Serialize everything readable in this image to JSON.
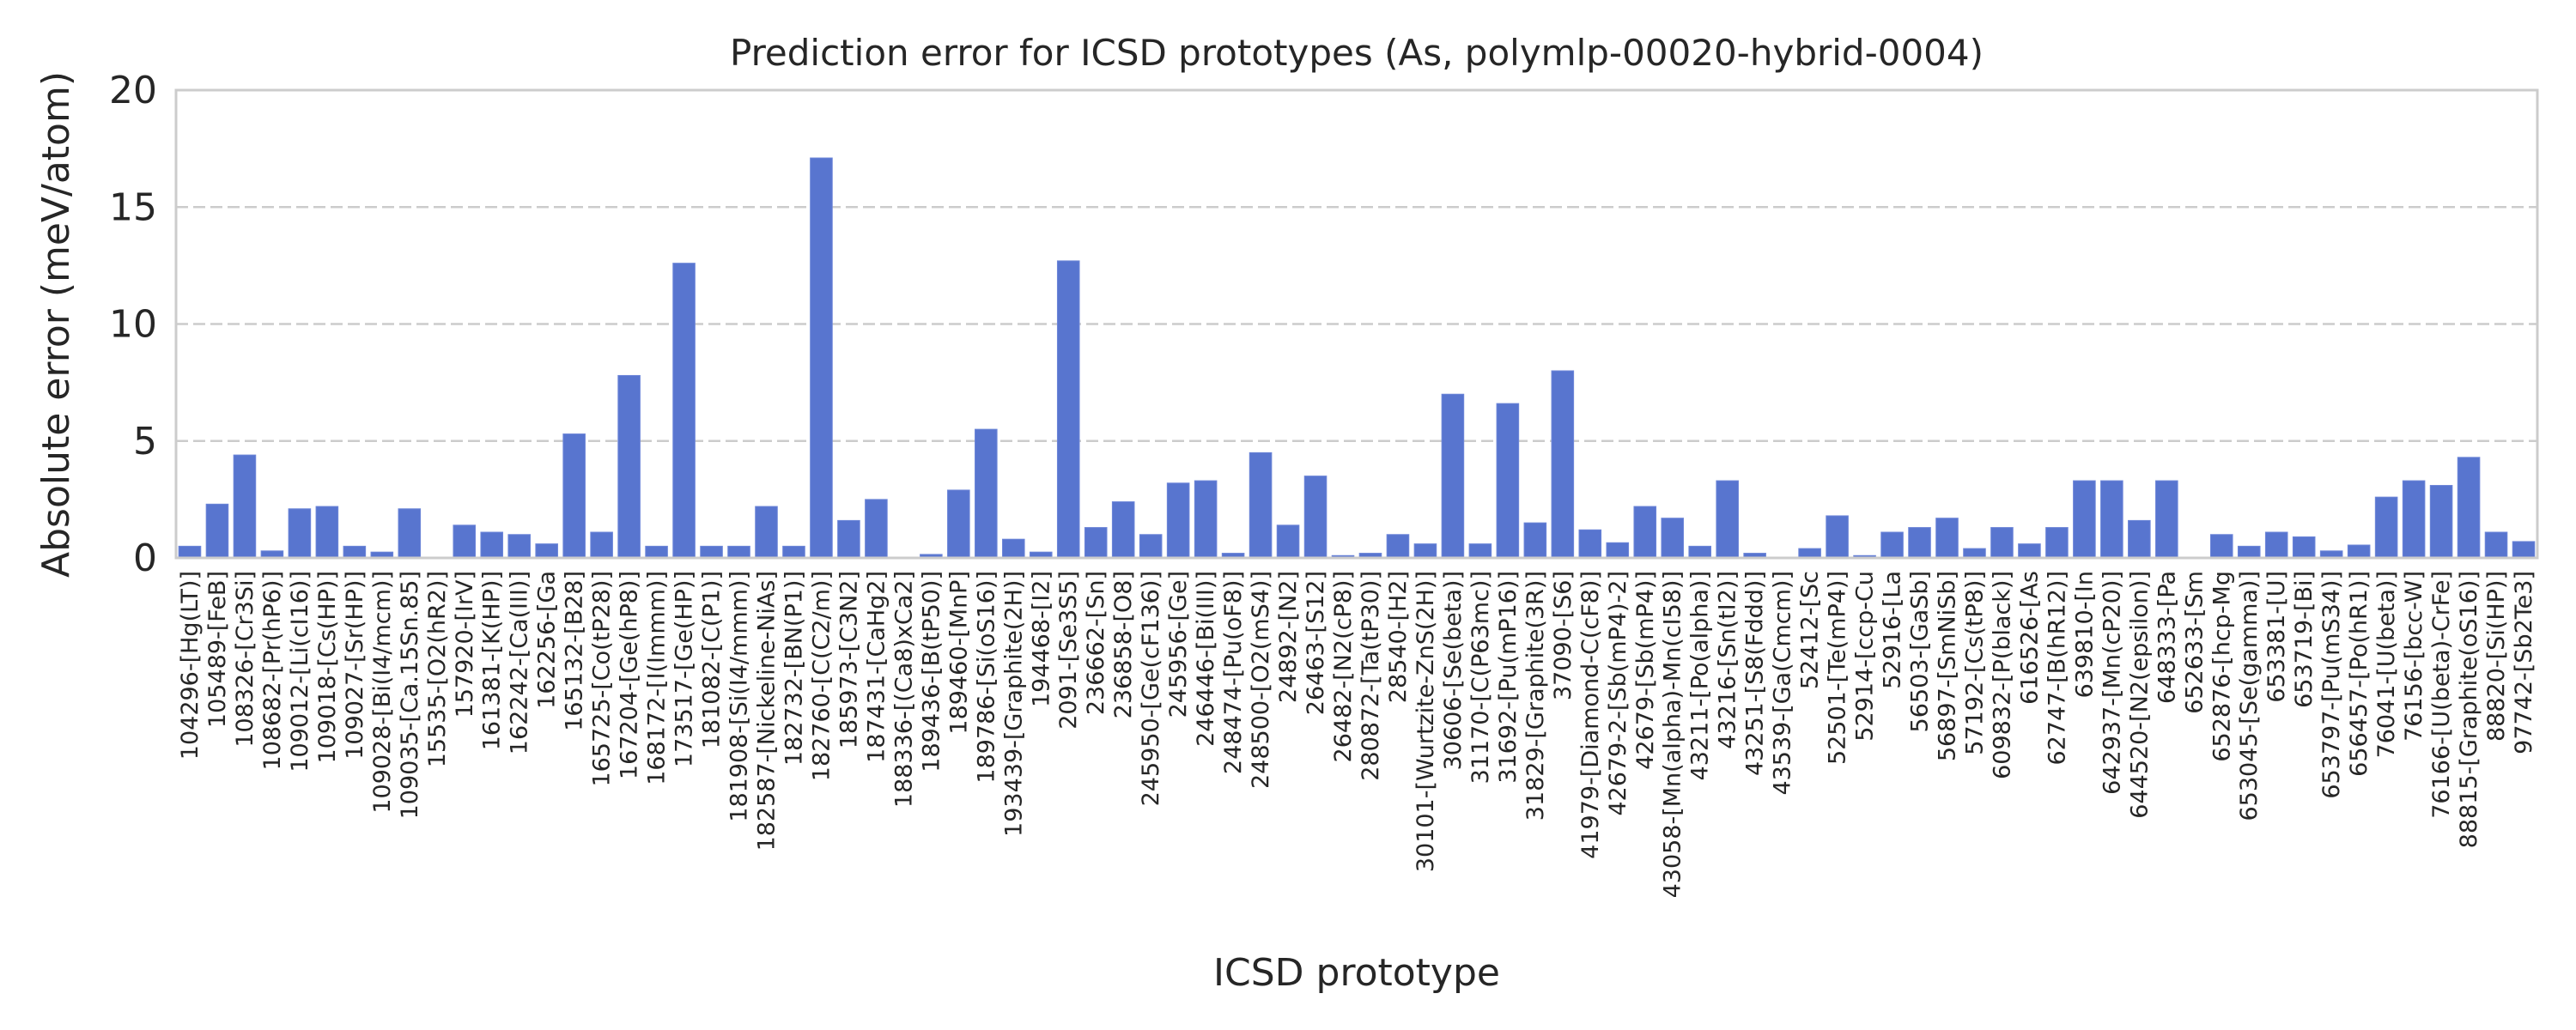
{
  "chart_data": {
    "type": "bar",
    "title": "Prediction error for ICSD prototypes (As, polymlp-00020-hybrid-0004)",
    "xlabel": "ICSD prototype",
    "ylabel": "Absolute error (meV/atom)",
    "ylim": [
      0,
      20
    ],
    "yticks": [
      "0",
      "5",
      "10",
      "15",
      "20"
    ],
    "grid": "horizontal dashed",
    "bar_color": "#5875cf",
    "categories": [
      "104296-[Hg(LT)]",
      "105489-[FeB]",
      "108326-[Cr3Si]",
      "108682-[Pr(hP6)]",
      "109012-[Li(cI16)]",
      "109018-[Cs(HP)]",
      "109027-[Sr(HP)]",
      "109028-[Bi(I4/mcm)]",
      "109035-[Ca.15Sn.85]",
      "15535-[O2(hR2)]",
      "157920-[IrV]",
      "161381-[K(HP)]",
      "162242-[Ca(III)]",
      "162256-[Ga",
      "165132-[B28]",
      "165725-[Co(tP28)]",
      "167204-[Ge(hP8)]",
      "168172-[I(Immm)]",
      "173517-[Ge(HP)]",
      "181082-[C(P1)]",
      "181908-[Si(I4/mmm)]",
      "182587-[Nickeline-NiAs]",
      "182732-[BN(P1)]",
      "182760-[C(C2/m)]",
      "185973-[C3N2]",
      "187431-[CaHg2]",
      "188336-[(Ca8)xCa2]",
      "189436-[B(tP50)]",
      "189460-[MnP]",
      "189786-[Si(oS16)]",
      "193439-[Graphite(2H)]",
      "194468-[I2]",
      "2091-[Se3S5]",
      "236662-[Sn]",
      "236858-[O8]",
      "245950-[Ge(cF136)]",
      "245956-[Ge]",
      "246446-[Bi(III)]",
      "248474-[Pu(oF8)]",
      "248500-[O2(mS4)]",
      "24892-[N2]",
      "26463-[S12]",
      "26482-[N2(cP8)]",
      "280872-[Ta(tP30)]",
      "28540-[H2]",
      "30101-[Wurtzite-ZnS(2H)]",
      "30606-[Se(beta)]",
      "31170-[C(P63mc)]",
      "31692-[Pu(mP16)]",
      "31829-[Graphite(3R)]",
      "37090-[S6]",
      "41979-[Diamond-C(cF8)]",
      "42679-2-[Sb(mP4)-2]",
      "42679-[Sb(mP4)]",
      "43058-[Mn(alpha)-Mn(cI58)]",
      "43211-[Po(alpha)]",
      "43216-[Sn(tI2)]",
      "43251-[S8(Fddd)]",
      "43539-[Ga(Cmcm)]",
      "52412-[Sc",
      "52501-[Te(mP4)]",
      "52914-[ccp-Cu",
      "52916-[La",
      "56503-[GaSb]",
      "56897-[SmNiSb]",
      "57192-[Cs(tP8)]",
      "609832-[P(black)]",
      "616526-[As",
      "62747-[B(hR12)]",
      "639810-[In",
      "642937-[Mn(cP20)]",
      "644520-[N2(epsilon)]",
      "648333-[Pa",
      "652633-[Sm",
      "652876-[hcp-Mg",
      "653045-[Se(gamma)]",
      "653381-[U]",
      "653719-[Bi]",
      "653797-[Pu(mS34)]",
      "656457-[Po(hR1)]",
      "76041-[U(beta)]",
      "76156-[bcc-W]",
      "76166-[U(beta)-CrFe]",
      "88815-[Graphite(oS16)]",
      "88820-[Si(HP)]",
      "97742-[Sb2Te3]"
    ],
    "values": [
      0.5,
      2.3,
      4.4,
      0.3,
      2.1,
      2.2,
      0.5,
      0.25,
      2.1,
      0.0,
      1.4,
      1.1,
      1.0,
      0.6,
      5.3,
      1.1,
      7.8,
      0.5,
      12.6,
      0.5,
      0.5,
      2.2,
      0.5,
      17.1,
      1.6,
      2.5,
      0.0,
      0.15,
      2.9,
      5.5,
      0.8,
      0.25,
      12.7,
      1.3,
      2.4,
      1.0,
      3.2,
      3.3,
      0.2,
      4.5,
      1.4,
      3.5,
      0.1,
      0.2,
      1.0,
      0.6,
      7.0,
      0.6,
      6.6,
      1.5,
      8.0,
      1.2,
      0.65,
      2.2,
      1.7,
      0.5,
      3.3,
      0.2,
      0.0,
      0.4,
      1.8,
      0.1,
      1.1,
      1.3,
      1.7,
      0.4,
      1.3,
      0.6,
      1.3,
      3.3,
      3.3,
      1.6,
      3.3,
      0.0,
      1.0,
      0.5,
      1.1,
      0.9,
      0.3,
      0.55,
      2.6,
      3.3,
      3.1,
      4.3,
      1.1,
      0.7
    ]
  }
}
